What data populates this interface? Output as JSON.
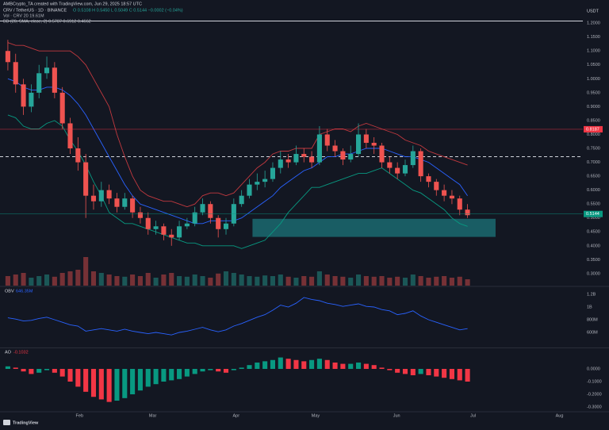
{
  "chart_data": [
    {
      "type": "candlestick",
      "source": "AMBCrypto_TA created with TradingView.com, Jun 29, 2025 18:57 UTC",
      "title": "CRV / TetherUS · 1D · BINANCE",
      "ohlc_label": "O 0.5108  H 0.5450  L 0.5049  C 0.5144  −0.0002 (−0.04%)",
      "volume_label": "Vol · CRV  20  19.61M",
      "bb_label": "BB (20, SMA, close, 2)  0.5787  0.6912  0.4662",
      "currency": "USDT",
      "xlim": [
        -0.5,
        73.8
      ],
      "xticks": [
        {
          "value": 9.2,
          "label": "Feb"
        },
        {
          "value": 18.6,
          "label": "Mar"
        },
        {
          "value": 29.3,
          "label": "Apr"
        },
        {
          "value": 39.5,
          "label": "May"
        },
        {
          "value": 49.9,
          "label": "Jun"
        },
        {
          "value": 59.7,
          "label": "Jul"
        },
        {
          "value": 70.8,
          "label": "Aug"
        }
      ],
      "ylim": [
        0.257,
        1.209
      ],
      "yticks": [
        {
          "value": 0.3,
          "label": "0.3000"
        },
        {
          "value": 0.35,
          "label": "0.3500"
        },
        {
          "value": 0.4,
          "label": "0.4000"
        },
        {
          "value": 0.45,
          "label": "0.4500"
        },
        {
          "value": 0.5,
          "label": "0.5000"
        },
        {
          "value": 0.55,
          "label": "0.5500"
        },
        {
          "value": 0.6,
          "label": "0.6000"
        },
        {
          "value": 0.65,
          "label": "0.6500"
        },
        {
          "value": 0.7,
          "label": "0.7000"
        },
        {
          "value": 0.75,
          "label": "0.7500"
        },
        {
          "value": 0.8,
          "label": "0.8000"
        },
        {
          "value": 0.85,
          "label": "0.8500"
        },
        {
          "value": 0.9,
          "label": "0.9000"
        },
        {
          "value": 0.95,
          "label": "0.9500"
        },
        {
          "value": 1.0,
          "label": "1.0000"
        },
        {
          "value": 1.05,
          "label": "1.0500"
        },
        {
          "value": 1.1,
          "label": "1.1000"
        },
        {
          "value": 1.15,
          "label": "1.1500"
        },
        {
          "value": 1.2,
          "label": "1.2000"
        }
      ],
      "grid": false,
      "up_color": "#26a69a",
      "down_color": "#ef5350",
      "open": [
        1.1,
        1.06,
        0.98,
        0.9,
        0.95,
        1.02,
        1.04,
        0.95,
        0.84,
        0.75,
        0.7,
        0.58,
        0.56,
        0.6,
        0.57,
        0.54,
        0.57,
        0.52,
        0.5,
        0.46,
        0.47,
        0.44,
        0.43,
        0.47,
        0.48,
        0.52,
        0.55,
        0.5,
        0.46,
        0.48,
        0.55,
        0.58,
        0.62,
        0.63,
        0.64,
        0.68,
        0.71,
        0.7,
        0.73,
        0.72,
        0.7,
        0.8,
        0.76,
        0.74,
        0.71,
        0.73,
        0.8,
        0.77,
        0.76,
        0.7,
        0.68,
        0.66,
        0.69,
        0.74,
        0.65,
        0.63,
        0.6,
        0.58,
        0.57,
        0.53
      ],
      "high": [
        1.14,
        1.09,
        1.0,
        0.98,
        1.05,
        1.08,
        1.06,
        0.97,
        0.86,
        0.79,
        0.73,
        0.62,
        0.63,
        0.62,
        0.59,
        0.59,
        0.58,
        0.54,
        0.52,
        0.49,
        0.48,
        0.46,
        0.49,
        0.5,
        0.54,
        0.57,
        0.56,
        0.51,
        0.5,
        0.57,
        0.6,
        0.64,
        0.66,
        0.67,
        0.7,
        0.74,
        0.73,
        0.76,
        0.75,
        0.74,
        0.83,
        0.82,
        0.78,
        0.75,
        0.76,
        0.84,
        0.82,
        0.79,
        0.77,
        0.72,
        0.7,
        0.71,
        0.76,
        0.75,
        0.66,
        0.64,
        0.62,
        0.6,
        0.58,
        0.55
      ],
      "low": [
        1.03,
        0.95,
        0.87,
        0.88,
        0.93,
        1.0,
        0.93,
        0.82,
        0.73,
        0.67,
        0.5,
        0.53,
        0.54,
        0.55,
        0.52,
        0.53,
        0.5,
        0.48,
        0.44,
        0.44,
        0.42,
        0.4,
        0.42,
        0.46,
        0.47,
        0.51,
        0.48,
        0.43,
        0.44,
        0.47,
        0.54,
        0.57,
        0.6,
        0.61,
        0.63,
        0.66,
        0.68,
        0.69,
        0.7,
        0.68,
        0.69,
        0.74,
        0.72,
        0.69,
        0.7,
        0.72,
        0.75,
        0.73,
        0.68,
        0.66,
        0.64,
        0.65,
        0.68,
        0.63,
        0.61,
        0.58,
        0.56,
        0.55,
        0.51,
        0.5
      ],
      "close": [
        1.06,
        0.98,
        0.9,
        0.95,
        1.02,
        1.04,
        0.95,
        0.84,
        0.75,
        0.7,
        0.58,
        0.56,
        0.6,
        0.57,
        0.54,
        0.57,
        0.52,
        0.5,
        0.46,
        0.47,
        0.44,
        0.43,
        0.47,
        0.48,
        0.52,
        0.55,
        0.5,
        0.46,
        0.48,
        0.55,
        0.58,
        0.62,
        0.63,
        0.64,
        0.68,
        0.71,
        0.7,
        0.73,
        0.72,
        0.7,
        0.8,
        0.76,
        0.74,
        0.71,
        0.73,
        0.8,
        0.77,
        0.76,
        0.7,
        0.68,
        0.66,
        0.69,
        0.74,
        0.65,
        0.63,
        0.6,
        0.58,
        0.57,
        0.53,
        0.51
      ],
      "volume": [
        30,
        35,
        40,
        25,
        30,
        35,
        28,
        40,
        45,
        50,
        90,
        45,
        40,
        35,
        30,
        28,
        35,
        30,
        40,
        25,
        35,
        40,
        30,
        28,
        35,
        30,
        25,
        38,
        45,
        40,
        35,
        30,
        28,
        32,
        30,
        35,
        28,
        25,
        30,
        28,
        45,
        35,
        30,
        28,
        25,
        35,
        30,
        28,
        30,
        25,
        28,
        25,
        35,
        30,
        25,
        28,
        30,
        25,
        28,
        20
      ],
      "bands": {
        "upper": [
          1.13,
          1.12,
          1.12,
          1.11,
          1.1,
          1.1,
          1.1,
          1.1,
          1.1,
          1.08,
          1.05,
          1.0,
          0.95,
          0.9,
          0.8,
          0.72,
          0.65,
          0.6,
          0.58,
          0.57,
          0.56,
          0.56,
          0.55,
          0.54,
          0.55,
          0.58,
          0.59,
          0.59,
          0.58,
          0.59,
          0.62,
          0.65,
          0.68,
          0.7,
          0.73,
          0.74,
          0.74,
          0.75,
          0.75,
          0.75,
          0.8,
          0.81,
          0.82,
          0.82,
          0.81,
          0.83,
          0.84,
          0.83,
          0.82,
          0.81,
          0.8,
          0.78,
          0.77,
          0.76,
          0.74,
          0.73,
          0.72,
          0.71,
          0.7,
          0.69
        ],
        "basis": [
          1.0,
          0.99,
          0.97,
          0.96,
          0.96,
          0.97,
          0.97,
          0.96,
          0.94,
          0.91,
          0.87,
          0.82,
          0.77,
          0.72,
          0.67,
          0.62,
          0.58,
          0.55,
          0.54,
          0.53,
          0.52,
          0.51,
          0.5,
          0.49,
          0.48,
          0.48,
          0.49,
          0.49,
          0.49,
          0.49,
          0.5,
          0.52,
          0.54,
          0.56,
          0.58,
          0.61,
          0.63,
          0.65,
          0.67,
          0.68,
          0.7,
          0.72,
          0.72,
          0.73,
          0.73,
          0.74,
          0.75,
          0.75,
          0.75,
          0.74,
          0.73,
          0.72,
          0.72,
          0.71,
          0.7,
          0.68,
          0.66,
          0.64,
          0.62,
          0.58
        ],
        "lower": [
          0.87,
          0.86,
          0.83,
          0.82,
          0.82,
          0.84,
          0.85,
          0.83,
          0.78,
          0.74,
          0.69,
          0.63,
          0.58,
          0.52,
          0.5,
          0.48,
          0.48,
          0.47,
          0.46,
          0.45,
          0.44,
          0.43,
          0.42,
          0.41,
          0.41,
          0.4,
          0.4,
          0.4,
          0.4,
          0.4,
          0.39,
          0.4,
          0.41,
          0.42,
          0.45,
          0.48,
          0.52,
          0.55,
          0.58,
          0.61,
          0.61,
          0.62,
          0.63,
          0.64,
          0.65,
          0.66,
          0.66,
          0.67,
          0.68,
          0.66,
          0.64,
          0.62,
          0.6,
          0.59,
          0.57,
          0.55,
          0.53,
          0.5,
          0.48,
          0.47
        ]
      },
      "band_colors": {
        "upper": "#c2393f",
        "basis": "#2962ff",
        "lower": "#089981"
      },
      "zone": {
        "x": [
          31.4,
          62.6
        ],
        "y": [
          0.432,
          0.497
        ],
        "color": "#1b6f76"
      },
      "levels": [
        {
          "value": 0.72,
          "style": "dashed",
          "color": "#d1d4dc"
        }
      ],
      "price_labels": [
        {
          "value": 0.8187,
          "label": "0.8187",
          "color": "#f23645"
        },
        {
          "value": 0.5144,
          "label": "0.5144",
          "color": "#089981"
        }
      ]
    },
    {
      "type": "line",
      "name": "OBV",
      "value_label": "646.35M",
      "color": "#2962ff",
      "ylim": [
        375,
        1312
      ],
      "yticks": [
        {
          "value": 600,
          "label": "600M"
        },
        {
          "value": 800,
          "label": "800M"
        },
        {
          "value": 1000,
          "label": "1B"
        },
        {
          "value": 1200,
          "label": "1.2B"
        }
      ],
      "values": [
        830,
        810,
        780,
        790,
        820,
        840,
        800,
        760,
        720,
        700,
        620,
        640,
        660,
        640,
        620,
        650,
        620,
        600,
        580,
        600,
        580,
        560,
        600,
        620,
        650,
        680,
        640,
        610,
        640,
        700,
        740,
        790,
        840,
        880,
        950,
        1030,
        1000,
        1060,
        1150,
        1120,
        1100,
        1060,
        1040,
        1010,
        1030,
        1050,
        1010,
        1000,
        960,
        940,
        880,
        900,
        940,
        860,
        800,
        760,
        720,
        680,
        640,
        660
      ]
    },
    {
      "type": "bar",
      "name": "AO",
      "value_label": "-0.1032",
      "up_color": "#089981",
      "down_color": "#f23645",
      "ylim": [
        -0.331,
        0.156
      ],
      "yticks": [
        {
          "value": 0,
          "label": "0.0000"
        },
        {
          "value": -0.1,
          "label": "-0.1000"
        },
        {
          "value": -0.2,
          "label": "-0.2000"
        },
        {
          "value": -0.3,
          "label": "-0.3000"
        }
      ],
      "values": [
        0.02,
        0.01,
        -0.02,
        -0.04,
        -0.03,
        -0.01,
        -0.03,
        -0.06,
        -0.1,
        -0.14,
        -0.18,
        -0.22,
        -0.24,
        -0.26,
        -0.25,
        -0.23,
        -0.2,
        -0.17,
        -0.14,
        -0.12,
        -0.1,
        -0.09,
        -0.08,
        -0.06,
        -0.04,
        -0.02,
        -0.01,
        -0.02,
        -0.03,
        -0.01,
        0.01,
        0.03,
        0.05,
        0.06,
        0.07,
        0.09,
        0.08,
        0.07,
        0.06,
        0.07,
        0.08,
        0.07,
        0.05,
        0.04,
        0.04,
        0.05,
        0.04,
        0.03,
        0.01,
        -0.01,
        -0.03,
        -0.04,
        -0.05,
        -0.04,
        -0.05,
        -0.06,
        -0.07,
        -0.08,
        -0.09,
        -0.1
      ]
    }
  ],
  "footer": {
    "logo": "TradingView"
  }
}
